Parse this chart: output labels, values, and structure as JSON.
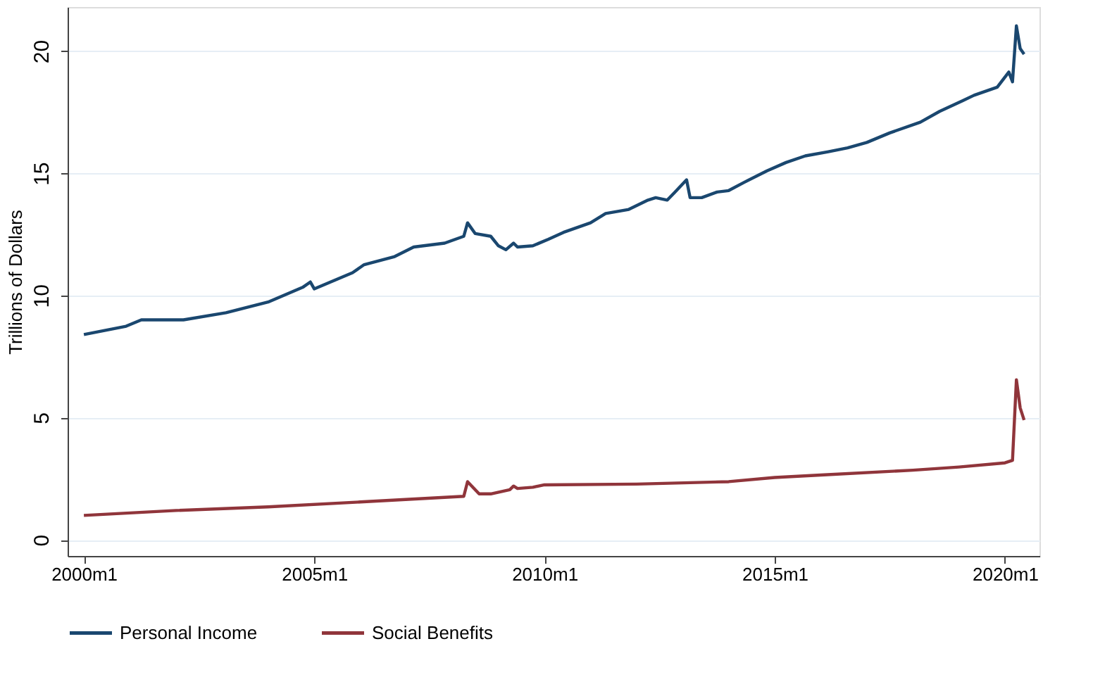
{
  "chart_data": {
    "type": "line",
    "ylabel": "Trillions of Dollars",
    "xlim": [
      "1999-08-25",
      "2020-10-01"
    ],
    "ylim": [
      -0.66,
      21.8
    ],
    "xticks": [
      {
        "value": "2000-01",
        "label": "2000m1"
      },
      {
        "value": "2005-01",
        "label": "2005m1"
      },
      {
        "value": "2010-01",
        "label": "2010m1"
      },
      {
        "value": "2015-01",
        "label": "2015m1"
      },
      {
        "value": "2020-01",
        "label": "2020m1"
      }
    ],
    "yticks": [
      0,
      5,
      10,
      15,
      20
    ],
    "grid": "y",
    "legend": "bottom",
    "line_style": "solid",
    "marker": "none",
    "series": [
      {
        "name": "Personal Income",
        "color": "#1a476f",
        "x": [
          "2000-01",
          "2000-12",
          "2001-04",
          "2002-03",
          "2003-02",
          "2004-01",
          "2004-10",
          "2004-12",
          "2005-01",
          "2005-11",
          "2006-02",
          "2006-10",
          "2007-03",
          "2007-11",
          "2008-04",
          "2008-05",
          "2008-07",
          "2008-11",
          "2009-01",
          "2009-03",
          "2009-05",
          "2009-06",
          "2009-10",
          "2010-02",
          "2010-06",
          "2011-01",
          "2011-05",
          "2011-11",
          "2012-04",
          "2012-06",
          "2012-09",
          "2012-11",
          "2013-02",
          "2013-03",
          "2013-06",
          "2013-10",
          "2014-01",
          "2014-05",
          "2014-11",
          "2015-04",
          "2015-09",
          "2016-03",
          "2016-08",
          "2017-01",
          "2017-07",
          "2018-03",
          "2018-08",
          "2019-02",
          "2019-05",
          "2019-11",
          "2020-02",
          "2020-03",
          "2020-04",
          "2020-05",
          "2020-06"
        ],
        "values": [
          8.4,
          8.74,
          9.0,
          9.0,
          9.29,
          9.73,
          10.33,
          10.55,
          10.27,
          10.93,
          11.26,
          11.59,
          11.98,
          12.14,
          12.42,
          12.97,
          12.53,
          12.42,
          12.03,
          11.87,
          12.14,
          11.98,
          12.03,
          12.3,
          12.58,
          12.97,
          13.35,
          13.52,
          13.9,
          14.0,
          13.9,
          14.23,
          14.73,
          14.0,
          14.0,
          14.23,
          14.29,
          14.62,
          15.1,
          15.44,
          15.71,
          15.88,
          16.04,
          16.26,
          16.65,
          17.09,
          17.53,
          17.97,
          18.19,
          18.52,
          19.14,
          18.74,
          21.03,
          20.1,
          19.87
        ]
      },
      {
        "name": "Social Benefits",
        "color": "#90353b",
        "x": [
          "2000-01",
          "2002-01",
          "2004-01",
          "2006-01",
          "2008-04",
          "2008-05",
          "2008-08",
          "2008-11",
          "2009-04",
          "2009-05",
          "2009-06",
          "2009-10",
          "2010-01",
          "2012-01",
          "2014-01",
          "2015-01",
          "2016-01",
          "2018-01",
          "2019-01",
          "2020-01",
          "2020-03",
          "2020-04",
          "2020-05",
          "2020-06"
        ],
        "values": [
          1.0,
          1.2,
          1.35,
          1.55,
          1.78,
          2.38,
          1.88,
          1.88,
          2.05,
          2.2,
          2.1,
          2.15,
          2.25,
          2.28,
          2.38,
          2.55,
          2.65,
          2.85,
          2.98,
          3.15,
          3.25,
          6.55,
          5.4,
          4.9
        ]
      }
    ]
  }
}
